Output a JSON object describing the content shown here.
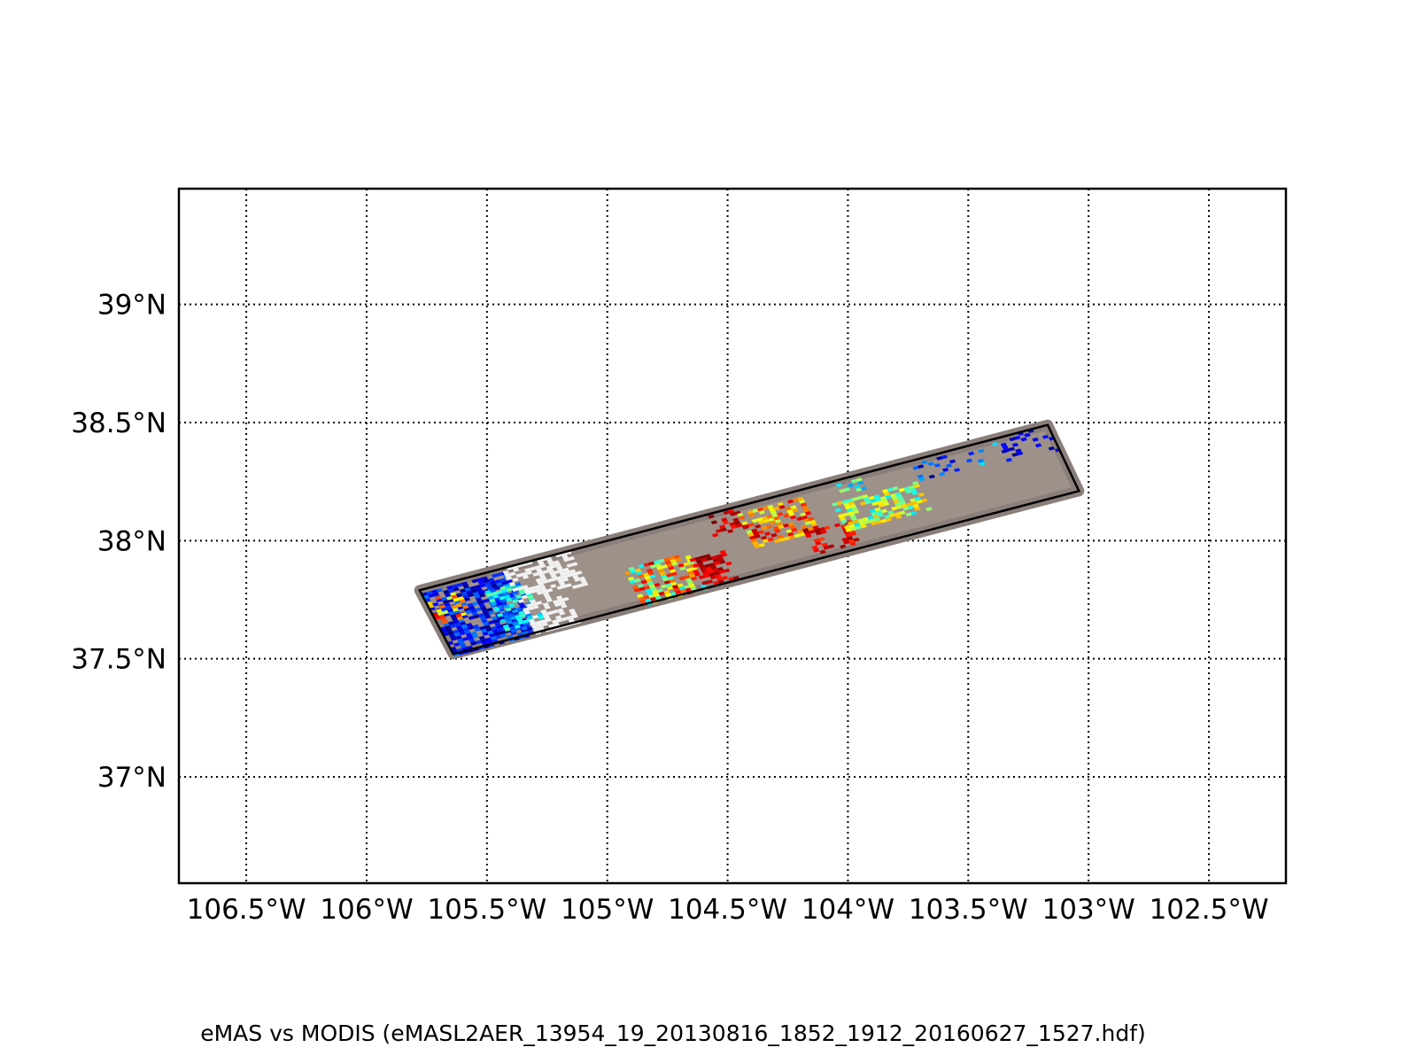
{
  "map": {
    "lon_range": [
      -106.78,
      -102.18
    ],
    "lat_range": [
      36.55,
      39.49
    ],
    "lat_ticks": [
      {
        "value": 39.0,
        "label": "39°N"
      },
      {
        "value": 38.5,
        "label": "38.5°N"
      },
      {
        "value": 38.0,
        "label": "38°N"
      },
      {
        "value": 37.5,
        "label": "37.5°N"
      },
      {
        "value": 37.0,
        "label": "37°N"
      }
    ],
    "lon_ticks": [
      {
        "value": -106.5,
        "label": "106.5°W"
      },
      {
        "value": -106.0,
        "label": "106°W"
      },
      {
        "value": -105.5,
        "label": "105.5°W"
      },
      {
        "value": -105.0,
        "label": "105°W"
      },
      {
        "value": -104.5,
        "label": "104.5°W"
      },
      {
        "value": -104.0,
        "label": "104°W"
      },
      {
        "value": -103.5,
        "label": "103.5°W"
      },
      {
        "value": -103.0,
        "label": "103°W"
      },
      {
        "value": -102.5,
        "label": "102.5°W"
      }
    ],
    "gridlines": true,
    "swath_corners": [
      {
        "lon": -105.78,
        "lat": 37.79
      },
      {
        "lon": -103.17,
        "lat": 38.49
      },
      {
        "lon": -103.04,
        "lat": 38.21
      },
      {
        "lon": -105.64,
        "lat": 37.52
      }
    ],
    "swath_colors": {
      "border": "#8a7f7a",
      "ground": "#9e918a",
      "outline": "#000000",
      "cloud": "#f2f2f2"
    }
  },
  "caption": "eMAS vs MODIS (eMASL2AER_13954_19_20130816_1852_1912_20160627_1527.hdf)"
}
